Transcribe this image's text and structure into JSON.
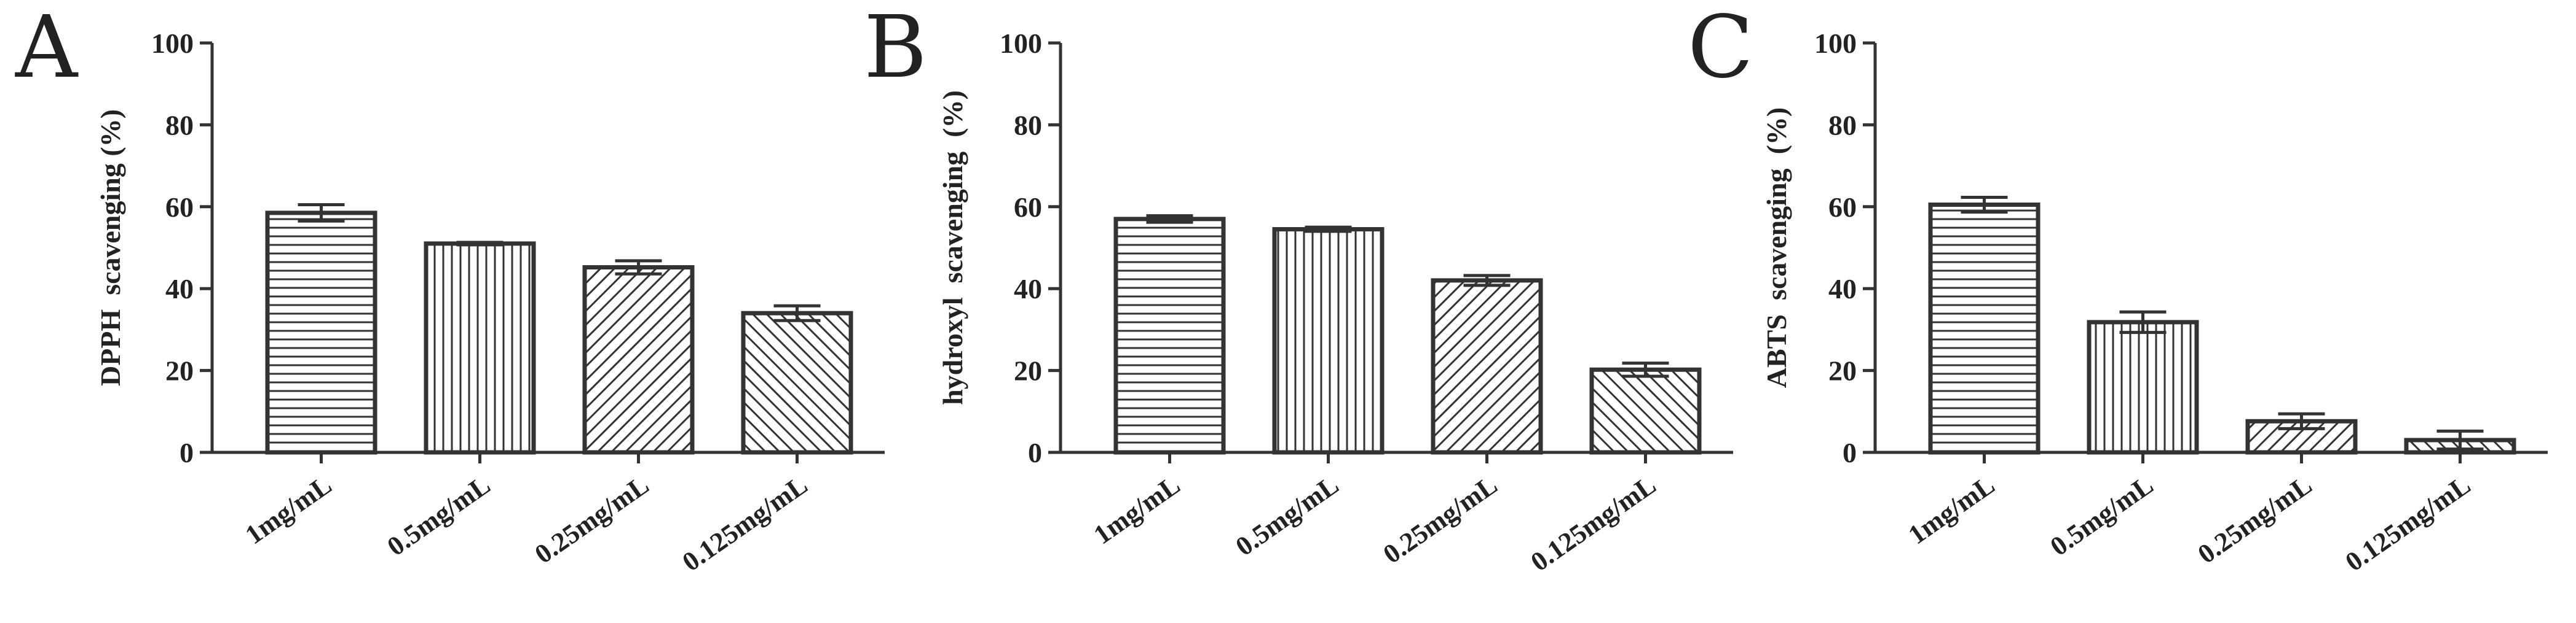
{
  "chart_data": [
    {
      "type": "bar",
      "panel": "A",
      "categories": [
        "1mg/mL",
        "0.5mg/mL",
        "0.25mg/mL",
        "0.125mg/mL"
      ],
      "values": [
        58.5,
        51.0,
        45.2,
        34.0
      ],
      "errors": [
        2.0,
        0.3,
        1.6,
        1.8
      ],
      "ylabel": "DPPH  scavenging (%)",
      "ylim": [
        0,
        100
      ],
      "yticks": [
        0,
        20,
        40,
        60,
        80,
        100
      ],
      "patterns": [
        "horizontal",
        "vertical",
        "diagonal-up",
        "diagonal-down"
      ]
    },
    {
      "type": "bar",
      "panel": "B",
      "categories": [
        "1mg/mL",
        "0.5mg/mL",
        "0.25mg/mL",
        "0.125mg/mL"
      ],
      "values": [
        57.0,
        54.5,
        42.0,
        20.2
      ],
      "errors": [
        0.8,
        0.5,
        1.2,
        1.6
      ],
      "ylabel": "hydroxyl  scavenging  (%)",
      "ylim": [
        0,
        100
      ],
      "yticks": [
        0,
        20,
        40,
        60,
        80,
        100
      ],
      "patterns": [
        "horizontal",
        "vertical",
        "diagonal-up",
        "diagonal-down"
      ]
    },
    {
      "type": "bar",
      "panel": "C",
      "categories": [
        "1mg/mL",
        "0.5mg/mL",
        "0.25mg/mL",
        "0.125mg/mL"
      ],
      "values": [
        60.5,
        31.8,
        7.6,
        3.0
      ],
      "errors": [
        1.8,
        2.5,
        1.8,
        2.2
      ],
      "ylabel": "ABTS  scavenging  (%)",
      "ylim": [
        0,
        100
      ],
      "yticks": [
        0,
        20,
        40,
        60,
        80,
        100
      ],
      "patterns": [
        "horizontal",
        "vertical",
        "diagonal-up",
        "diagonal-down"
      ]
    }
  ],
  "colors": {
    "ink": "#333333",
    "background": "#ffffff"
  }
}
